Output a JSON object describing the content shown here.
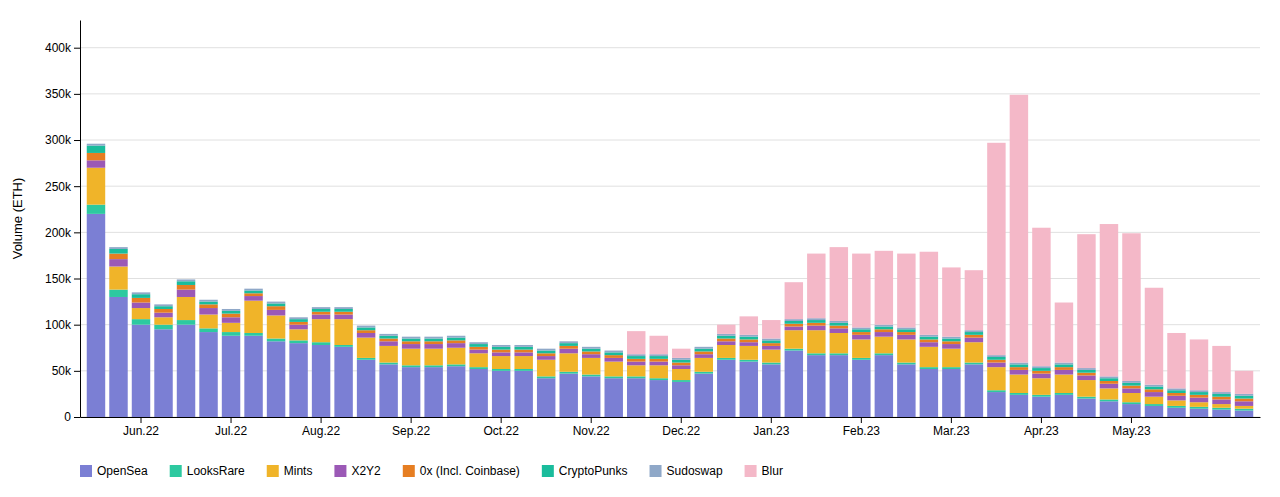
{
  "chart_data": {
    "type": "bar",
    "stacked": true,
    "grid": true,
    "legend": "bottom",
    "ylabel": "Volume (ETH)",
    "categories": [
      null,
      null,
      "Jun.22",
      null,
      null,
      null,
      "Jul.22",
      null,
      null,
      null,
      "Aug.22",
      null,
      null,
      null,
      "Sep.22",
      null,
      null,
      null,
      "Oct.22",
      null,
      null,
      null,
      "Nov.22",
      null,
      null,
      null,
      "Dec.22",
      null,
      null,
      null,
      "Jan.23",
      null,
      null,
      null,
      "Feb.23",
      null,
      null,
      null,
      "Mar.23",
      null,
      null,
      null,
      "Apr.23",
      null,
      null,
      null,
      "May.23",
      null,
      null,
      null,
      null,
      null
    ],
    "ylim": [
      0,
      430000
    ],
    "yticks": [
      0,
      {
        "value": 50000,
        "label": "50k"
      },
      {
        "value": 100000,
        "label": "100k"
      },
      {
        "value": 150000,
        "label": "150k"
      },
      {
        "value": 200000,
        "label": "200k"
      },
      {
        "value": 250000,
        "label": "250k"
      },
      {
        "value": 300000,
        "label": "300k"
      },
      {
        "value": 350000,
        "label": "350k"
      },
      {
        "value": 400000,
        "label": "400k"
      }
    ],
    "series": [
      {
        "name": "OpenSea",
        "color": "#7b7fd4",
        "values": [
          220000,
          130000,
          100000,
          95000,
          100000,
          92000,
          88000,
          88000,
          82000,
          80000,
          78000,
          76000,
          62000,
          57000,
          54000,
          54000,
          55000,
          52000,
          50000,
          50000,
          42000,
          47000,
          44000,
          42000,
          42000,
          40000,
          38000,
          47000,
          62000,
          60000,
          57000,
          72000,
          67000,
          67000,
          62000,
          67000,
          57000,
          52000,
          52000,
          57000,
          27000,
          24000,
          22000,
          24000,
          20000,
          17000,
          14000,
          12000,
          10000,
          9000,
          8000,
          7000
        ]
      },
      {
        "name": "LooksRare",
        "color": "#2dc9a0",
        "values": [
          10000,
          8000,
          6000,
          5000,
          5000,
          4000,
          4000,
          3000,
          3000,
          3000,
          3000,
          2000,
          2000,
          2000,
          2000,
          2000,
          2000,
          2000,
          2000,
          2000,
          2000,
          2000,
          2000,
          2000,
          2000,
          2000,
          2000,
          2000,
          2000,
          2000,
          2000,
          2000,
          2000,
          2000,
          2000,
          2000,
          2000,
          2000,
          2000,
          2000,
          2000,
          2000,
          2000,
          2000,
          2000,
          2000,
          2000,
          2000,
          2000,
          2000,
          2000,
          2000
        ]
      },
      {
        "name": "Mints",
        "color": "#f0b429",
        "values": [
          40000,
          25000,
          12000,
          8000,
          25000,
          15000,
          10000,
          35000,
          25000,
          12000,
          25000,
          28000,
          22000,
          18000,
          18000,
          18000,
          18000,
          15000,
          14000,
          14000,
          18000,
          20000,
          18000,
          16000,
          12000,
          14000,
          12000,
          15000,
          14000,
          15000,
          14000,
          20000,
          25000,
          22000,
          20000,
          18000,
          25000,
          22000,
          20000,
          22000,
          25000,
          20000,
          18000,
          20000,
          18000,
          12000,
          10000,
          8000,
          6000,
          5000,
          4000,
          3000
        ]
      },
      {
        "name": "X2Y2",
        "color": "#9b59b6",
        "values": [
          8000,
          8000,
          6000,
          5000,
          8000,
          7000,
          6000,
          5000,
          6000,
          5000,
          5000,
          5000,
          5000,
          5000,
          5000,
          5000,
          5000,
          4000,
          4000,
          4000,
          4000,
          5000,
          4000,
          4000,
          4000,
          4000,
          4000,
          4000,
          4000,
          4000,
          4000,
          4000,
          5000,
          5000,
          5000,
          5000,
          5000,
          5000,
          5000,
          5000,
          5000,
          5000,
          5000,
          5000,
          5000,
          5000,
          5000,
          5000,
          5000,
          5000,
          5000,
          5000
        ]
      },
      {
        "name": "0x (Incl. Coinbase)",
        "color": "#e67e22",
        "values": [
          8000,
          6000,
          5000,
          4000,
          5000,
          4000,
          4000,
          3000,
          4000,
          3000,
          3000,
          3000,
          3000,
          3000,
          3000,
          3000,
          3000,
          3000,
          3000,
          3000,
          3000,
          3000,
          3000,
          3000,
          3000,
          3000,
          3000,
          3000,
          3000,
          3000,
          3000,
          3000,
          3000,
          3000,
          3000,
          3000,
          3000,
          3000,
          3000,
          3000,
          3000,
          3000,
          3000,
          3000,
          3000,
          3000,
          3000,
          3000,
          3000,
          3000,
          3000,
          3000
        ]
      },
      {
        "name": "CryptoPunks",
        "color": "#1abc9c",
        "values": [
          8000,
          5000,
          4000,
          3000,
          4000,
          3000,
          3000,
          3000,
          3000,
          3000,
          3000,
          3000,
          3000,
          3000,
          3000,
          3000,
          3000,
          3000,
          3000,
          3000,
          3000,
          3000,
          3000,
          3000,
          3000,
          3000,
          3000,
          3000,
          3000,
          3000,
          3000,
          3000,
          3000,
          3000,
          3000,
          3000,
          3000,
          3000,
          3000,
          3000,
          3000,
          3000,
          3000,
          3000,
          3000,
          3000,
          3000,
          3000,
          3000,
          3000,
          3000,
          3000
        ]
      },
      {
        "name": "Sudoswap",
        "color": "#8fa8c8",
        "values": [
          2000,
          2000,
          2000,
          2000,
          2000,
          2000,
          2000,
          2000,
          2000,
          2000,
          2000,
          2000,
          2000,
          2000,
          2000,
          2000,
          2000,
          2000,
          2000,
          2000,
          2000,
          2000,
          2000,
          2000,
          2000,
          2000,
          2000,
          2000,
          2000,
          2000,
          2000,
          2000,
          2000,
          2000,
          2000,
          2000,
          2000,
          2000,
          2000,
          2000,
          2000,
          2000,
          2000,
          2000,
          2000,
          2000,
          2000,
          2000,
          2000,
          2000,
          2000,
          2000
        ]
      },
      {
        "name": "Blur",
        "color": "#f4b8c8",
        "values": [
          0,
          0,
          0,
          0,
          0,
          0,
          0,
          0,
          0,
          0,
          0,
          0,
          0,
          0,
          0,
          0,
          0,
          0,
          0,
          0,
          0,
          0,
          0,
          0,
          25000,
          20000,
          10000,
          0,
          10000,
          20000,
          20000,
          40000,
          70000,
          80000,
          80000,
          80000,
          80000,
          90000,
          75000,
          65000,
          230000,
          290000,
          150000,
          65000,
          145000,
          165000,
          160000,
          105000,
          60000,
          55000,
          50000,
          25000
        ]
      }
    ]
  }
}
